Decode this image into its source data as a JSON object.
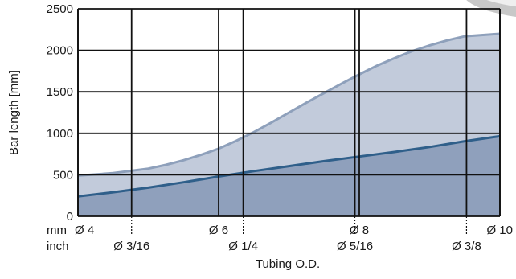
{
  "chart_data": {
    "type": "area",
    "ylabel": "Bar length [mm]",
    "xlabel": "Tubing O.D.",
    "ylim": [
      0,
      2500
    ],
    "y_ticks": [
      "0",
      "500",
      "1000",
      "1500",
      "2000",
      "2500"
    ],
    "grid": true,
    "unit_row_labels": {
      "mm": "mm",
      "inch": "inch"
    },
    "mm_ticks": [
      {
        "value": 4,
        "label": "Ø 4"
      },
      {
        "value": 6,
        "label": "Ø 6"
      },
      {
        "value": 8,
        "label": "Ø 8"
      },
      {
        "value": 10,
        "label": "Ø 10"
      }
    ],
    "inch_ticks": [
      {
        "value": 4.7625,
        "label": "Ø 3/16"
      },
      {
        "value": 6.35,
        "label": "Ø 1/4"
      },
      {
        "value": 7.9375,
        "label": "Ø 5/16"
      },
      {
        "value": 9.525,
        "label": "Ø 3/8"
      }
    ],
    "xlim": [
      4,
      10
    ],
    "series": [
      {
        "x": [
          4,
          4.5,
          5,
          5.5,
          6,
          6.5,
          7,
          7.5,
          8,
          8.5,
          9,
          9.5,
          10
        ],
        "values": [
          240,
          290,
          345,
          410,
          480,
          545,
          605,
          665,
          720,
          775,
          835,
          905,
          965
        ],
        "color": "#2f5f8a",
        "fill": "#8fa0bc"
      },
      {
        "x": [
          4,
          4.5,
          5,
          5.25,
          5.5,
          5.75,
          6,
          6.25,
          6.5,
          6.75,
          7,
          7.25,
          7.5,
          7.75,
          8,
          8.25,
          8.5,
          8.75,
          9,
          9.25,
          9.5,
          10
        ],
        "values": [
          490,
          520,
          575,
          620,
          675,
          740,
          815,
          910,
          1015,
          1130,
          1250,
          1370,
          1485,
          1600,
          1710,
          1815,
          1905,
          1990,
          2060,
          2120,
          2170,
          2200
        ],
        "color": "#8ea0bb",
        "fill": "#c2cbdb"
      }
    ]
  },
  "colors": {
    "lower_fill": "#8fa0bc",
    "upper_fill": "#c2cbdb",
    "lower_line": "#2f5f8a",
    "upper_line": "#8ea0bb",
    "grid": "#111111"
  }
}
